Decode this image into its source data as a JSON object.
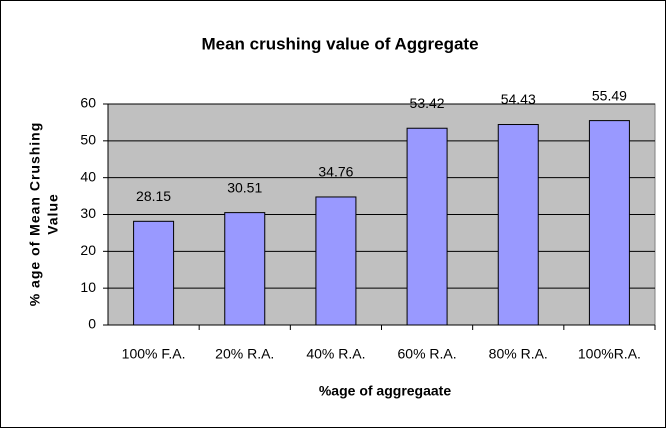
{
  "chart_data": {
    "type": "bar",
    "title": "Mean crushing value of Aggregate",
    "x_label": "%age of aggregaate",
    "y_label": [
      "% age of Mean Crushing",
      "Value"
    ],
    "categories": [
      "100% F.A.",
      "20% R.A.",
      "40% R.A.",
      "60% R.A.",
      "80% R.A.",
      "100%R.A."
    ],
    "values": [
      28.15,
      30.51,
      34.76,
      53.42,
      54.43,
      55.49
    ],
    "color": "#9999ff",
    "ylim": [
      0,
      60
    ],
    "yticks": [
      0,
      10,
      20,
      30,
      40,
      50,
      60
    ],
    "grid": true
  }
}
